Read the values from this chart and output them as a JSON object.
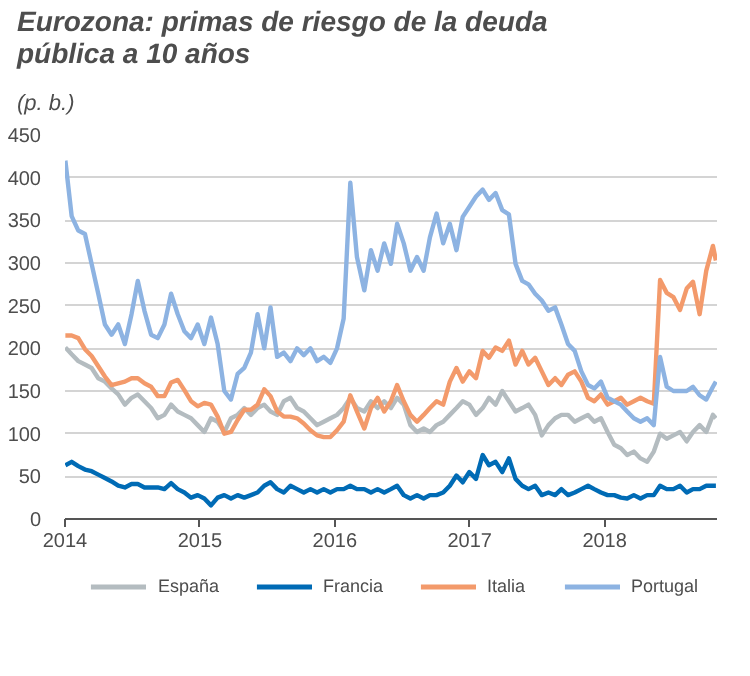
{
  "chart_data": {
    "type": "line",
    "title": "Eurozona: primas de riesgo de la deuda pública a 10 años",
    "subtitle": "(p. b.)",
    "x": [
      "2014-01-02",
      "2014-01-19",
      "2014-02-06",
      "2014-02-24",
      "2014-03-14",
      "2014-04-01",
      "2014-04-19",
      "2014-05-07",
      "2014-05-25",
      "2014-06-12",
      "2014-06-30",
      "2014-07-17",
      "2014-08-04",
      "2014-08-22",
      "2014-09-09",
      "2014-09-27",
      "2014-10-15",
      "2014-11-02",
      "2014-11-20",
      "2014-12-08",
      "2014-12-26",
      "2015-01-13",
      "2015-01-31",
      "2015-02-18",
      "2015-03-08",
      "2015-03-26",
      "2015-04-13",
      "2015-05-01",
      "2015-05-19",
      "2015-06-06",
      "2015-06-24",
      "2015-07-11",
      "2015-07-29",
      "2015-08-16",
      "2015-09-03",
      "2015-09-21",
      "2015-10-09",
      "2015-10-27",
      "2015-11-14",
      "2015-12-02",
      "2015-12-20",
      "2016-01-07",
      "2016-01-25",
      "2016-02-12",
      "2016-03-01",
      "2016-03-21",
      "2016-04-08",
      "2016-04-26",
      "2016-05-14",
      "2016-06-01",
      "2016-06-18",
      "2016-07-06",
      "2016-07-24",
      "2016-08-11",
      "2016-08-29",
      "2016-09-15",
      "2016-10-03",
      "2016-10-21",
      "2016-11-08",
      "2016-11-26",
      "2016-12-13",
      "2016-12-31",
      "2017-01-18",
      "2017-02-05",
      "2017-02-22",
      "2017-03-12",
      "2017-03-30",
      "2017-04-17",
      "2017-05-05",
      "2017-05-23",
      "2017-06-09",
      "2017-06-27",
      "2017-07-15",
      "2017-08-02",
      "2017-08-20",
      "2017-09-06",
      "2017-09-24",
      "2017-10-12",
      "2017-10-30",
      "2017-11-17",
      "2017-12-04",
      "2017-12-22",
      "2018-01-09",
      "2018-01-27",
      "2018-02-14",
      "2018-03-03",
      "2018-03-21",
      "2018-04-08",
      "2018-04-26",
      "2018-05-14",
      "2018-05-31",
      "2018-06-18",
      "2018-07-06",
      "2018-07-24",
      "2018-08-11",
      "2018-08-28",
      "2018-09-15",
      "2018-10-03",
      "2018-10-21",
      "2018-10-29"
    ],
    "series": [
      {
        "name": "España",
        "color": "#b4bcc0",
        "values": [
          201,
          193,
          185,
          181,
          177,
          165,
          161,
          153,
          146,
          134,
          142,
          146,
          138,
          130,
          118,
          122,
          134,
          126,
          122,
          118,
          110,
          102,
          118,
          114,
          102,
          118,
          122,
          130,
          122,
          130,
          134,
          126,
          122,
          138,
          142,
          130,
          126,
          118,
          110,
          114,
          118,
          122,
          130,
          142,
          130,
          126,
          138,
          130,
          138,
          130,
          142,
          134,
          110,
          102,
          106,
          102,
          110,
          114,
          122,
          130,
          138,
          134,
          122,
          130,
          142,
          134,
          150,
          138,
          126,
          130,
          134,
          122,
          98,
          110,
          118,
          122,
          122,
          114,
          118,
          122,
          114,
          118,
          102,
          87,
          83,
          75,
          79,
          71,
          67,
          79,
          100,
          94,
          98,
          102,
          91,
          102,
          110,
          102,
          122,
          118
        ]
      },
      {
        "name": "Francia",
        "color": "#006bb5",
        "values": [
          63,
          67,
          62,
          58,
          56,
          52,
          48,
          44,
          39,
          37,
          41,
          41,
          37,
          37,
          37,
          35,
          42,
          35,
          31,
          25,
          28,
          24,
          16,
          25,
          28,
          24,
          28,
          25,
          28,
          31,
          39,
          43,
          35,
          31,
          39,
          35,
          31,
          35,
          31,
          35,
          31,
          35,
          35,
          39,
          35,
          35,
          31,
          35,
          31,
          35,
          39,
          28,
          24,
          28,
          24,
          28,
          28,
          31,
          39,
          51,
          43,
          55,
          47,
          75,
          63,
          67,
          55,
          71,
          47,
          39,
          35,
          39,
          28,
          31,
          28,
          35,
          28,
          31,
          35,
          39,
          35,
          31,
          28,
          28,
          25,
          24,
          28,
          24,
          28,
          28,
          39,
          35,
          35,
          39,
          31,
          35,
          35,
          39,
          39,
          39
        ]
      },
      {
        "name": "Italia",
        "color": "#f39a6b",
        "values": [
          215,
          215,
          212,
          199,
          191,
          179,
          167,
          157,
          159,
          161,
          165,
          165,
          159,
          155,
          144,
          144,
          160,
          163,
          151,
          138,
          132,
          136,
          134,
          120,
          100,
          102,
          116,
          128,
          128,
          134,
          152,
          144,
          126,
          120,
          120,
          118,
          112,
          104,
          98,
          96,
          96,
          104,
          114,
          145,
          126,
          106,
          130,
          142,
          126,
          138,
          157,
          138,
          122,
          114,
          122,
          130,
          138,
          134,
          161,
          177,
          161,
          173,
          165,
          197,
          189,
          201,
          197,
          209,
          181,
          197,
          181,
          189,
          173,
          157,
          165,
          157,
          169,
          173,
          161,
          142,
          138,
          146,
          134,
          138,
          142,
          134,
          138,
          142,
          138,
          135,
          280,
          265,
          260,
          245,
          270,
          278,
          240,
          291,
          320,
          303
        ]
      },
      {
        "name": "Portugal",
        "color": "#8db3e2",
        "values": [
          420,
          355,
          338,
          334,
          299,
          264,
          228,
          216,
          228,
          205,
          240,
          279,
          244,
          216,
          212,
          228,
          264,
          240,
          220,
          212,
          228,
          205,
          236,
          205,
          150,
          140,
          170,
          177,
          195,
          240,
          200,
          248,
          190,
          195,
          185,
          200,
          192,
          200,
          185,
          190,
          183,
          200,
          235,
          394,
          307,
          268,
          315,
          291,
          323,
          299,
          346,
          323,
          291,
          307,
          291,
          330,
          358,
          323,
          346,
          315,
          354,
          366,
          378,
          386,
          374,
          382,
          362,
          357,
          299,
          279,
          275,
          264,
          256,
          244,
          248,
          228,
          205,
          197,
          173,
          157,
          153,
          161,
          142,
          138,
          134,
          126,
          118,
          114,
          118,
          110,
          190,
          155,
          150,
          150,
          150,
          155,
          145,
          140,
          155,
          161
        ]
      }
    ],
    "xlim": [
      "2014-01-01",
      "2018-11-01"
    ],
    "xticks": [
      "2014",
      "2015",
      "2016",
      "2017",
      "2018"
    ],
    "ylim": [
      0,
      450
    ],
    "yticks": [
      0,
      50,
      100,
      150,
      200,
      250,
      300,
      350,
      400,
      450
    ],
    "grid": "y",
    "legend": "bottom"
  }
}
